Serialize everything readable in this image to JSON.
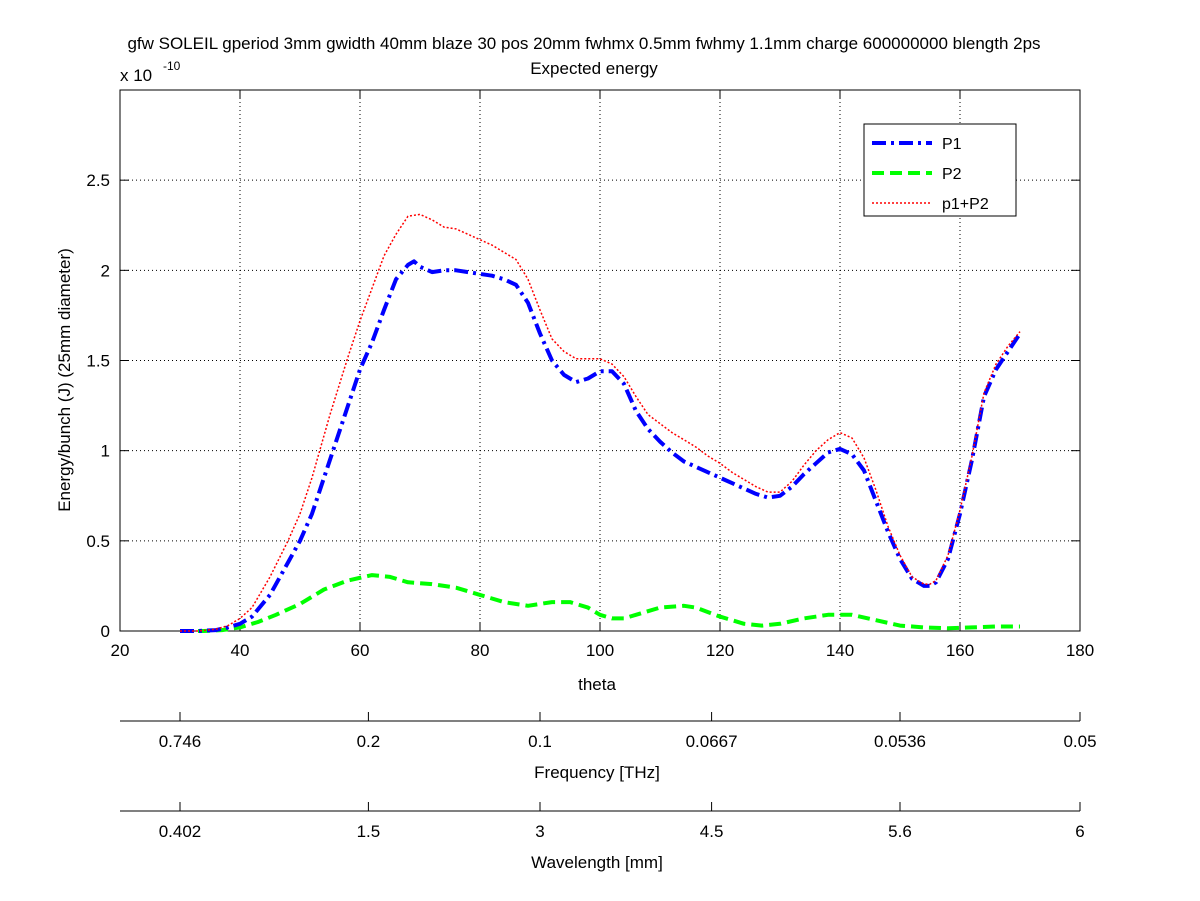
{
  "chart_data": {
    "type": "line",
    "title": "gfw SOLEIL gperiod 3mm gwidth 40mm blaze 30 pos 20mm fwhmx 0.5mm fwhmy 1.1mm charge 600000000 blength 2ps",
    "subtitle": "Expected energy",
    "xlabel": "theta",
    "ylabel": "Energy/bunch (J) (25mm diameter)",
    "y_exponent_base": "x 10",
    "y_exponent_power": "-10",
    "xlim": [
      20,
      180
    ],
    "ylim": [
      0,
      3.0
    ],
    "y_scale_factor": 1e-10,
    "grid": true,
    "legend_position": "top-right",
    "x_ticks": [
      20,
      40,
      60,
      80,
      100,
      120,
      140,
      160,
      180
    ],
    "x_tick_labels": [
      "20",
      "40",
      "60",
      "80",
      "100",
      "120",
      "140",
      "160",
      "180"
    ],
    "y_ticks": [
      0,
      0.5,
      1,
      1.5,
      2,
      2.5
    ],
    "y_tick_labels": [
      "0",
      "0.5",
      "1",
      "1.5",
      "2",
      "2.5"
    ],
    "secondary_axes": [
      {
        "label": "Frequency [THz]",
        "tick_theta": [
          30,
          61.4,
          90,
          118.6,
          150,
          180
        ],
        "tick_labels": [
          "0.746",
          "0.2",
          "0.1",
          "0.0667",
          "0.0536",
          "0.05"
        ]
      },
      {
        "label": "Wavelength [mm]",
        "tick_theta": [
          30,
          61.4,
          90,
          118.6,
          150,
          180
        ],
        "tick_labels": [
          "0.402",
          "1.5",
          "3",
          "4.5",
          "5.6",
          "6"
        ]
      }
    ],
    "series": [
      {
        "name": "P1",
        "color": "#0000ff",
        "style": "dash-dot",
        "x": [
          30,
          33,
          36,
          38,
          40,
          42,
          45,
          48,
          50,
          52,
          55,
          58,
          60,
          62,
          64,
          66,
          68,
          69,
          70,
          72,
          74,
          76,
          78,
          80,
          82,
          84,
          86,
          88,
          90,
          92,
          94,
          96,
          98,
          100,
          102,
          104,
          106,
          108,
          110,
          112,
          114,
          116,
          118,
          120,
          122,
          124,
          126,
          128,
          130,
          132,
          134,
          136,
          138,
          140,
          142,
          144,
          146,
          148,
          150,
          152,
          154,
          155,
          156,
          158,
          160,
          162,
          164,
          166,
          168,
          170
        ],
        "y": [
          0,
          0,
          0.005,
          0.02,
          0.04,
          0.08,
          0.2,
          0.38,
          0.5,
          0.65,
          0.95,
          1.25,
          1.45,
          1.6,
          1.78,
          1.95,
          2.03,
          2.05,
          2.02,
          1.99,
          2.0,
          2.0,
          1.99,
          1.98,
          1.97,
          1.95,
          1.92,
          1.82,
          1.65,
          1.5,
          1.42,
          1.38,
          1.4,
          1.44,
          1.44,
          1.37,
          1.22,
          1.12,
          1.05,
          0.99,
          0.94,
          0.91,
          0.88,
          0.85,
          0.82,
          0.79,
          0.76,
          0.74,
          0.75,
          0.8,
          0.87,
          0.93,
          0.99,
          1.01,
          0.98,
          0.89,
          0.72,
          0.55,
          0.4,
          0.29,
          0.25,
          0.25,
          0.27,
          0.4,
          0.65,
          0.95,
          1.3,
          1.45,
          1.55,
          1.65
        ]
      },
      {
        "name": "P2",
        "color": "#00ff00",
        "style": "dashed",
        "x": [
          30,
          34,
          37,
          40,
          43,
          46,
          50,
          54,
          58,
          62,
          65,
          68,
          72,
          76,
          80,
          84,
          88,
          92,
          95,
          98,
          100,
          102,
          104,
          106,
          110,
          114,
          116,
          120,
          124,
          127,
          130,
          134,
          138,
          140,
          142,
          146,
          150,
          154,
          158,
          162,
          166,
          170
        ],
        "y": [
          0,
          0,
          0.005,
          0.02,
          0.05,
          0.09,
          0.15,
          0.23,
          0.28,
          0.31,
          0.3,
          0.27,
          0.26,
          0.24,
          0.2,
          0.16,
          0.14,
          0.16,
          0.16,
          0.13,
          0.09,
          0.07,
          0.07,
          0.09,
          0.13,
          0.14,
          0.13,
          0.08,
          0.04,
          0.03,
          0.04,
          0.07,
          0.09,
          0.09,
          0.09,
          0.06,
          0.03,
          0.02,
          0.015,
          0.02,
          0.025,
          0.025
        ]
      },
      {
        "name": "p1+P2",
        "color": "#ff0000",
        "style": "dotted",
        "x": [
          30,
          33,
          36,
          38,
          40,
          42,
          45,
          48,
          50,
          52,
          55,
          58,
          60,
          62,
          64,
          66,
          68,
          70,
          72,
          74,
          76,
          78,
          80,
          82,
          84,
          86,
          88,
          90,
          92,
          94,
          96,
          98,
          100,
          102,
          104,
          106,
          108,
          110,
          112,
          114,
          116,
          118,
          120,
          122,
          124,
          126,
          128,
          130,
          132,
          134,
          136,
          138,
          140,
          142,
          144,
          146,
          148,
          150,
          152,
          154,
          155,
          156,
          158,
          160,
          162,
          164,
          166,
          168,
          170
        ],
        "y": [
          0,
          0,
          0.01,
          0.03,
          0.07,
          0.13,
          0.3,
          0.5,
          0.65,
          0.85,
          1.2,
          1.52,
          1.72,
          1.9,
          2.08,
          2.2,
          2.3,
          2.31,
          2.28,
          2.24,
          2.23,
          2.2,
          2.17,
          2.14,
          2.1,
          2.06,
          1.95,
          1.78,
          1.62,
          1.55,
          1.51,
          1.51,
          1.51,
          1.48,
          1.41,
          1.3,
          1.2,
          1.15,
          1.1,
          1.06,
          1.02,
          0.97,
          0.93,
          0.88,
          0.84,
          0.8,
          0.77,
          0.77,
          0.83,
          0.92,
          1.0,
          1.06,
          1.1,
          1.07,
          0.96,
          0.78,
          0.58,
          0.42,
          0.3,
          0.26,
          0.26,
          0.28,
          0.42,
          0.67,
          0.97,
          1.32,
          1.48,
          1.58,
          1.66
        ]
      }
    ]
  }
}
